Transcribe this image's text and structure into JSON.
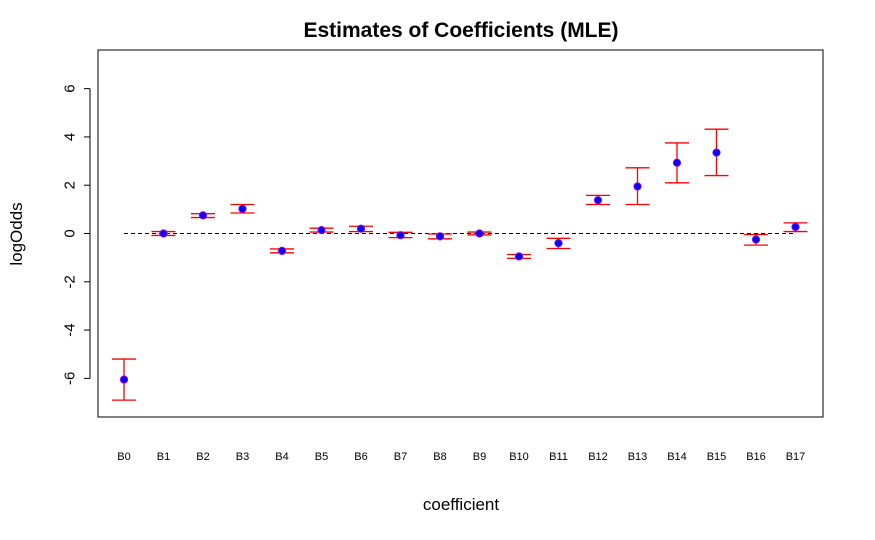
{
  "chart_data": {
    "type": "scatter",
    "title": "Estimates of Coefficients (MLE)",
    "xlabel": "coefficient",
    "ylabel": "logOdds",
    "ylim": [
      -7.6,
      7.6
    ],
    "yticks": [
      -6,
      -4,
      -2,
      0,
      2,
      4,
      6
    ],
    "ytick_labels": [
      "-6",
      "-4",
      "-2",
      "0",
      "2",
      "4",
      "6"
    ],
    "categories": [
      "B0",
      "B1",
      "B2",
      "B3",
      "B4",
      "B5",
      "B6",
      "B7",
      "B8",
      "B9",
      "B10",
      "B11",
      "B12",
      "B13",
      "B14",
      "B15",
      "B16",
      "B17"
    ],
    "series": [
      {
        "values": [
          -6.05,
          0.0,
          0.75,
          1.02,
          -0.72,
          0.14,
          0.2,
          -0.07,
          -0.12,
          0.0,
          -0.95,
          -0.4,
          1.38,
          1.95,
          2.93,
          3.35,
          -0.25,
          0.27
        ],
        "lower": [
          -6.9,
          -0.08,
          0.66,
          0.85,
          -0.8,
          0.06,
          0.08,
          -0.17,
          -0.22,
          -0.06,
          -1.03,
          -0.62,
          1.2,
          1.2,
          2.1,
          2.4,
          -0.48,
          0.08
        ],
        "upper": [
          -5.2,
          0.08,
          0.82,
          1.2,
          -0.64,
          0.22,
          0.3,
          0.05,
          -0.02,
          0.06,
          -0.87,
          -0.2,
          1.58,
          2.72,
          3.75,
          4.32,
          -0.04,
          0.44
        ]
      }
    ],
    "reference_line": 0,
    "grid": false,
    "colors": {
      "point_fill": "#0000ff",
      "point_outline": "#9900cc",
      "error_bar": "#ff0000",
      "reference_line": "#000000"
    }
  }
}
